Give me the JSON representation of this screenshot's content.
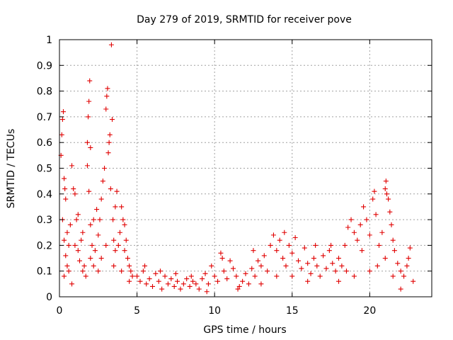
{
  "chart_data": {
    "type": "scatter",
    "title": "Day 279 of 2019, SRMTID for receiver pove",
    "xlabel": "GPS time / hours",
    "ylabel": "SRMTID / TECUs",
    "xlim": [
      0,
      24
    ],
    "ylim": [
      0,
      1
    ],
    "xticks": [
      0,
      5,
      10,
      15,
      20
    ],
    "xtick_labels": [
      "0",
      "5",
      "10",
      "15",
      "20"
    ],
    "yticks": [
      0,
      0.1,
      0.2,
      0.3,
      0.4,
      0.5,
      0.6,
      0.7,
      0.8,
      0.9,
      1
    ],
    "ytick_labels": [
      "0",
      "0.1",
      "0.2",
      "0.3",
      "0.4",
      "0.5",
      "0.6",
      "0.7",
      "0.8",
      "0.9",
      "1"
    ],
    "grid": true,
    "marker": "plus",
    "color": "#e00000",
    "series": [
      {
        "points": [
          [
            0.1,
            0.55
          ],
          [
            0.15,
            0.63
          ],
          [
            0.2,
            0.69
          ],
          [
            0.25,
            0.72
          ],
          [
            0.3,
            0.46
          ],
          [
            0.35,
            0.42
          ],
          [
            0.4,
            0.38
          ],
          [
            0.2,
            0.3
          ],
          [
            0.3,
            0.22
          ],
          [
            0.4,
            0.16
          ],
          [
            0.5,
            0.12
          ],
          [
            0.6,
            0.2
          ],
          [
            0.7,
            0.28
          ],
          [
            0.8,
            0.51
          ],
          [
            0.9,
            0.42
          ],
          [
            1.0,
            0.4
          ],
          [
            1.1,
            0.3
          ],
          [
            0.6,
            0.1
          ],
          [
            0.8,
            0.05
          ],
          [
            1.2,
            0.18
          ],
          [
            1.3,
            0.14
          ],
          [
            1.4,
            0.22
          ],
          [
            1.5,
            0.25
          ],
          [
            1.6,
            0.12
          ],
          [
            1.7,
            0.08
          ],
          [
            1.8,
            0.6
          ],
          [
            1.85,
            0.7
          ],
          [
            1.9,
            0.76
          ],
          [
            1.95,
            0.84
          ],
          [
            1.8,
            0.51
          ],
          [
            1.9,
            0.41
          ],
          [
            2.0,
            0.58
          ],
          [
            2.0,
            0.28
          ],
          [
            2.1,
            0.2
          ],
          [
            2.2,
            0.12
          ],
          [
            2.3,
            0.18
          ],
          [
            2.4,
            0.34
          ],
          [
            2.5,
            0.24
          ],
          [
            2.6,
            0.3
          ],
          [
            2.7,
            0.38
          ],
          [
            2.8,
            0.45
          ],
          [
            2.9,
            0.5
          ],
          [
            3.0,
            0.73
          ],
          [
            3.05,
            0.78
          ],
          [
            3.1,
            0.81
          ],
          [
            3.15,
            0.56
          ],
          [
            3.2,
            0.6
          ],
          [
            3.25,
            0.63
          ],
          [
            3.3,
            0.42
          ],
          [
            3.35,
            0.98
          ],
          [
            3.4,
            0.69
          ],
          [
            3.45,
            0.3
          ],
          [
            3.5,
            0.22
          ],
          [
            3.6,
            0.18
          ],
          [
            3.7,
            0.41
          ],
          [
            3.8,
            0.2
          ],
          [
            3.9,
            0.25
          ],
          [
            4.0,
            0.35
          ],
          [
            4.1,
            0.3
          ],
          [
            4.2,
            0.28
          ],
          [
            4.3,
            0.22
          ],
          [
            4.4,
            0.15
          ],
          [
            4.5,
            0.12
          ],
          [
            4.6,
            0.1
          ],
          [
            4.7,
            0.08
          ],
          [
            0.5,
            0.25
          ],
          [
            1.0,
            0.2
          ],
          [
            1.5,
            0.1
          ],
          [
            2.0,
            0.15
          ],
          [
            2.5,
            0.1
          ],
          [
            3.0,
            0.2
          ],
          [
            3.5,
            0.12
          ],
          [
            4.0,
            0.1
          ],
          [
            4.5,
            0.06
          ],
          [
            0.3,
            0.08
          ],
          [
            1.2,
            0.32
          ],
          [
            2.2,
            0.3
          ],
          [
            3.6,
            0.35
          ],
          [
            4.2,
            0.18
          ],
          [
            2.7,
            0.15
          ],
          [
            5.0,
            0.08
          ],
          [
            5.2,
            0.06
          ],
          [
            5.4,
            0.1
          ],
          [
            5.6,
            0.05
          ],
          [
            5.8,
            0.07
          ],
          [
            6.0,
            0.04
          ],
          [
            6.2,
            0.09
          ],
          [
            6.4,
            0.06
          ],
          [
            6.6,
            0.03
          ],
          [
            6.8,
            0.08
          ],
          [
            7.0,
            0.05
          ],
          [
            7.2,
            0.07
          ],
          [
            7.4,
            0.04
          ],
          [
            7.6,
            0.06
          ],
          [
            7.8,
            0.03
          ],
          [
            8.0,
            0.05
          ],
          [
            8.2,
            0.07
          ],
          [
            8.4,
            0.04
          ],
          [
            8.6,
            0.06
          ],
          [
            8.8,
            0.05
          ],
          [
            9.0,
            0.03
          ],
          [
            9.2,
            0.07
          ],
          [
            9.4,
            0.09
          ],
          [
            9.6,
            0.05
          ],
          [
            9.8,
            0.12
          ],
          [
            10.0,
            0.08
          ],
          [
            10.2,
            0.06
          ],
          [
            10.4,
            0.17
          ],
          [
            10.6,
            0.1
          ],
          [
            10.8,
            0.07
          ],
          [
            11.0,
            0.14
          ],
          [
            11.2,
            0.11
          ],
          [
            11.4,
            0.08
          ],
          [
            11.6,
            0.04
          ],
          [
            11.8,
            0.06
          ],
          [
            12.0,
            0.09
          ],
          [
            12.2,
            0.05
          ],
          [
            12.4,
            0.11
          ],
          [
            12.6,
            0.08
          ],
          [
            12.8,
            0.14
          ],
          [
            13.0,
            0.12
          ],
          [
            13.2,
            0.16
          ],
          [
            13.4,
            0.1
          ],
          [
            13.6,
            0.2
          ],
          [
            13.8,
            0.24
          ],
          [
            14.0,
            0.18
          ],
          [
            14.2,
            0.22
          ],
          [
            14.4,
            0.15
          ],
          [
            14.6,
            0.12
          ],
          [
            14.8,
            0.2
          ],
          [
            15.0,
            0.17
          ],
          [
            15.2,
            0.23
          ],
          [
            15.4,
            0.14
          ],
          [
            15.6,
            0.11
          ],
          [
            15.8,
            0.19
          ],
          [
            16.0,
            0.13
          ],
          [
            16.2,
            0.09
          ],
          [
            16.4,
            0.15
          ],
          [
            16.6,
            0.12
          ],
          [
            16.8,
            0.08
          ],
          [
            17.0,
            0.16
          ],
          [
            17.2,
            0.11
          ],
          [
            17.4,
            0.18
          ],
          [
            17.6,
            0.13
          ],
          [
            17.8,
            0.1
          ],
          [
            18.0,
            0.15
          ],
          [
            18.2,
            0.12
          ],
          [
            18.4,
            0.2
          ],
          [
            18.6,
            0.27
          ],
          [
            18.8,
            0.3
          ],
          [
            19.0,
            0.25
          ],
          [
            19.2,
            0.22
          ],
          [
            19.4,
            0.28
          ],
          [
            19.6,
            0.35
          ],
          [
            19.8,
            0.3
          ],
          [
            20.0,
            0.24
          ],
          [
            20.2,
            0.38
          ],
          [
            20.3,
            0.41
          ],
          [
            20.4,
            0.32
          ],
          [
            20.6,
            0.2
          ],
          [
            20.8,
            0.25
          ],
          [
            21.0,
            0.42
          ],
          [
            21.05,
            0.45
          ],
          [
            21.1,
            0.4
          ],
          [
            21.2,
            0.38
          ],
          [
            21.3,
            0.33
          ],
          [
            21.4,
            0.28
          ],
          [
            21.5,
            0.22
          ],
          [
            21.6,
            0.18
          ],
          [
            21.8,
            0.13
          ],
          [
            22.0,
            0.1
          ],
          [
            22.2,
            0.08
          ],
          [
            22.4,
            0.12
          ],
          [
            22.6,
            0.19
          ],
          [
            22.8,
            0.06
          ],
          [
            20.0,
            0.1
          ],
          [
            19.0,
            0.08
          ],
          [
            21.0,
            0.15
          ],
          [
            18.0,
            0.06
          ],
          [
            22.0,
            0.03
          ],
          [
            15.0,
            0.08
          ],
          [
            13.0,
            0.05
          ],
          [
            14.5,
            0.25
          ],
          [
            16.5,
            0.2
          ],
          [
            17.5,
            0.2
          ],
          [
            12.5,
            0.18
          ],
          [
            11.5,
            0.03
          ],
          [
            9.5,
            0.02
          ],
          [
            10.5,
            0.15
          ],
          [
            19.5,
            0.18
          ],
          [
            20.5,
            0.12
          ],
          [
            21.5,
            0.08
          ],
          [
            22.5,
            0.15
          ],
          [
            18.5,
            0.1
          ],
          [
            16.0,
            0.06
          ],
          [
            14.0,
            0.08
          ],
          [
            6.5,
            0.1
          ],
          [
            7.5,
            0.09
          ],
          [
            8.5,
            0.08
          ],
          [
            5.5,
            0.12
          ]
        ]
      }
    ]
  }
}
